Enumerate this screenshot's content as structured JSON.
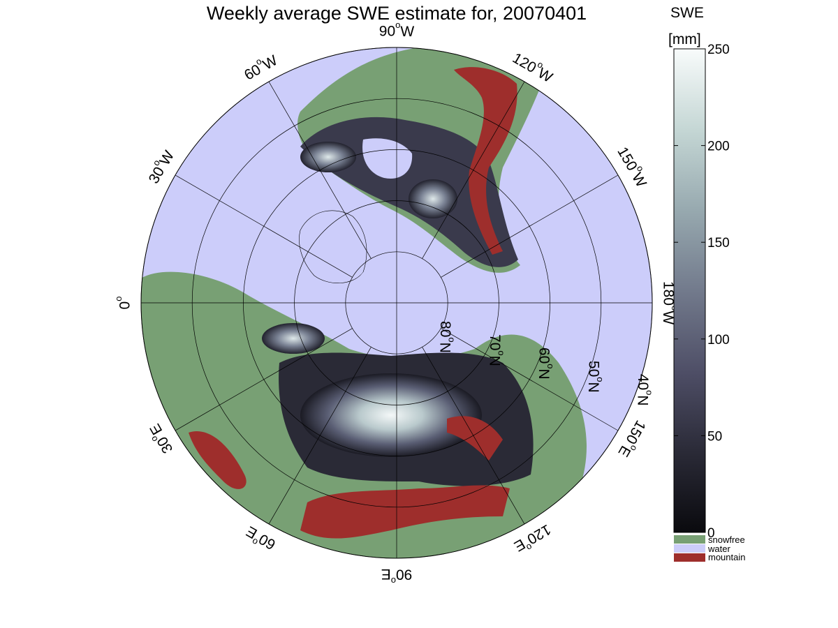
{
  "title": "Weekly average SWE estimate for, 20070401",
  "colorbar": {
    "label_line1": "SWE",
    "label_line2": "[mm]",
    "min": 0,
    "max": 250,
    "ticks": [
      "0",
      "50",
      "100",
      "150",
      "200",
      "250"
    ],
    "colors": [
      "#0a0a0e",
      "#2b2b38",
      "#4e4e66",
      "#727a8c",
      "#98aab0",
      "#c4d6d4",
      "#f8fbfb"
    ]
  },
  "legend": [
    {
      "label": "snowfree",
      "color": "#78a074"
    },
    {
      "label": "water",
      "color": "#cccdfa"
    },
    {
      "label": "mountain",
      "color": "#9e2e2c"
    }
  ],
  "meridians": [
    {
      "deg": "90",
      "hemi": "W"
    },
    {
      "deg": "120",
      "hemi": "W"
    },
    {
      "deg": "150",
      "hemi": "W"
    },
    {
      "deg": "180",
      "hemi": "W"
    },
    {
      "deg": "150",
      "hemi": "E"
    },
    {
      "deg": "120",
      "hemi": "E"
    },
    {
      "deg": "90",
      "hemi": "E"
    },
    {
      "deg": "60",
      "hemi": "E"
    },
    {
      "deg": "30",
      "hemi": "E"
    },
    {
      "deg": "0",
      "hemi": ""
    },
    {
      "deg": "30",
      "hemi": "W"
    },
    {
      "deg": "60",
      "hemi": "W"
    }
  ],
  "parallels": [
    {
      "deg": "80",
      "hemi": "N"
    },
    {
      "deg": "70",
      "hemi": "N"
    },
    {
      "deg": "60",
      "hemi": "N"
    },
    {
      "deg": "50",
      "hemi": "N"
    },
    {
      "deg": "40",
      "hemi": "N"
    }
  ],
  "degree_symbol": "o",
  "colors": {
    "water": "#cccdfa",
    "snowfree": "#78a074",
    "mountain": "#9e2e2c",
    "grid": "#000000"
  }
}
